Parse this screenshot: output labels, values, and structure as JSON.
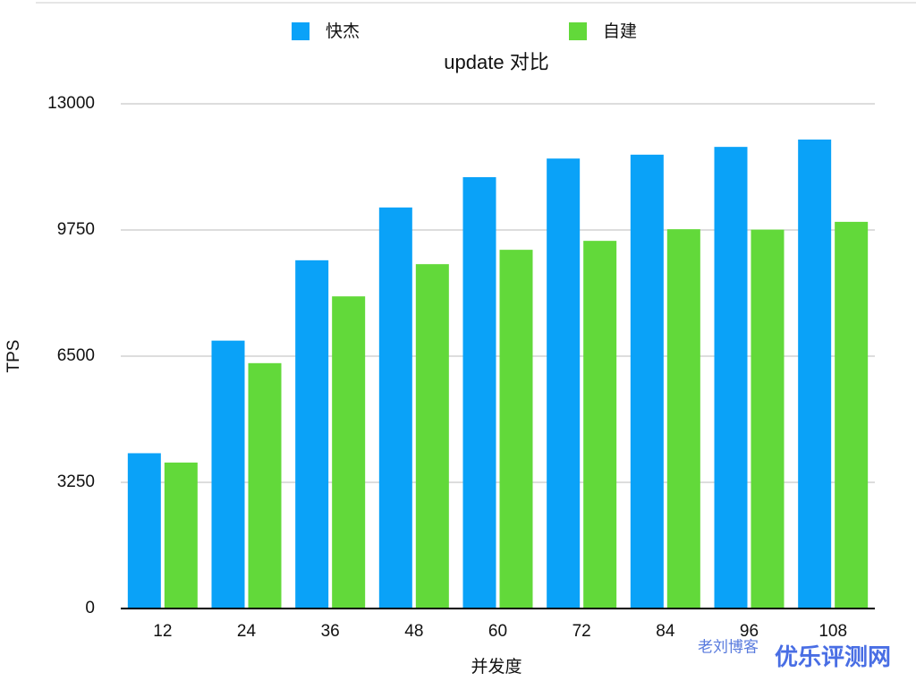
{
  "chart_data": {
    "type": "bar",
    "title": "update 对比",
    "x_label": "并发度",
    "y_label": "TPS",
    "categories": [
      "12",
      "24",
      "36",
      "48",
      "60",
      "72",
      "84",
      "96",
      "108"
    ],
    "series": [
      {
        "name": "快杰",
        "color": "#0aa2f8",
        "values": [
          4000,
          6900,
          8970,
          10330,
          11110,
          11590,
          11690,
          11890,
          12080
        ]
      },
      {
        "name": "自建",
        "color": "#62d93a",
        "values": [
          3760,
          6320,
          8040,
          8870,
          9240,
          9470,
          9770,
          9760,
          9960
        ]
      }
    ],
    "ylim": [
      0,
      13000
    ],
    "yticks": [
      0,
      3250,
      6500,
      9750,
      13000
    ],
    "grid": true,
    "legend": "top",
    "annotations": [
      "老刘博客",
      "优乐评测网"
    ]
  }
}
